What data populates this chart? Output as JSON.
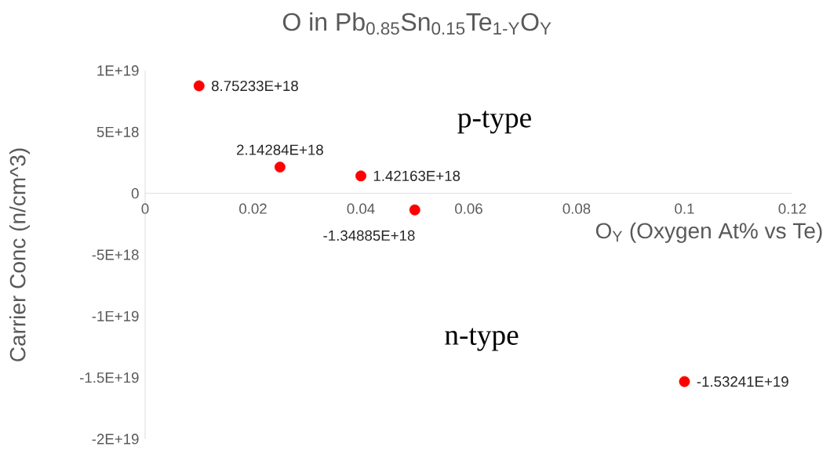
{
  "chart_data": {
    "type": "scatter",
    "title": "O in Pb$_{0.85}$Sn$_{0.15}$Te$_{1-Y}$O$_{Y}$",
    "xlabel": "O$_{Y}$ (Oxygen At% vs Te)",
    "ylabel": "Carrier Conc (n/cm^3)",
    "annotations": [
      "p-type",
      "n-type"
    ],
    "series": [
      {
        "color": "#ff0000",
        "x": [
          0.01,
          0.025,
          0.04,
          0.05,
          0.1
        ],
        "values": [
          8.75233e+18,
          2.14284e+18,
          1.42163e+18,
          -1.34885e+18,
          -1.53241e+19
        ],
        "value_labels": [
          "8.75233E+18",
          "2.14284E+18",
          "1.42163E+18",
          "-1.34885E+18",
          "-1.53241E+19"
        ]
      }
    ],
    "marker": "circle",
    "grid": false,
    "xlim": [
      0,
      0.12
    ],
    "xticks": [
      0,
      0.02,
      0.04,
      0.06,
      0.08,
      0.1,
      0.12
    ],
    "ylim": [
      -2e+19,
      1e+19
    ],
    "yticks": [
      {
        "value": -2e+19,
        "label": "-2E+19"
      },
      {
        "value": -1.5e+19,
        "label": "-1.5E+19"
      },
      {
        "value": -1e+19,
        "label": "-1E+19"
      },
      {
        "value": -5e+18,
        "label": "-5E+18"
      },
      {
        "value": 0,
        "label": "0"
      },
      {
        "value": 5e+18,
        "label": "5E+18"
      },
      {
        "value": 1e+19,
        "label": "1E+19"
      }
    ]
  }
}
